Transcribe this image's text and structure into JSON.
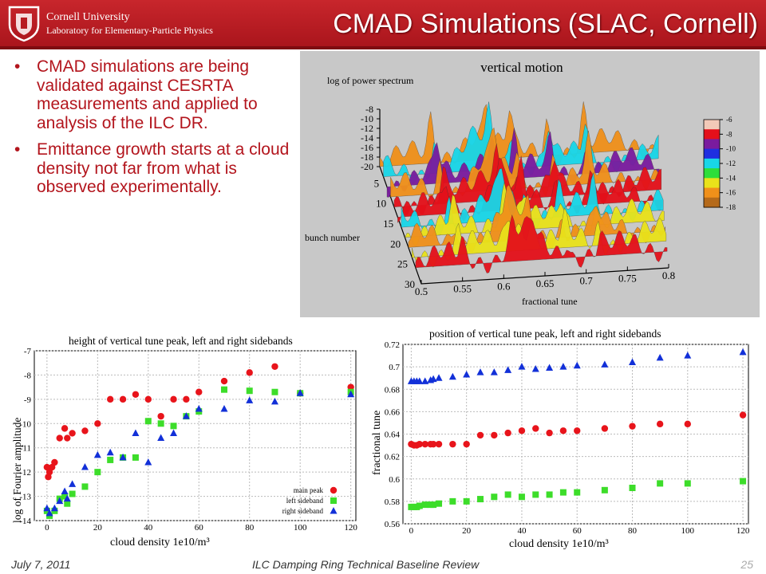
{
  "header": {
    "university": "Cornell University",
    "lab": "Laboratory for Elementary-Particle Physics",
    "title": "CMAD Simulations (SLAC, Cornell)",
    "colors": {
      "band": "#b71c22",
      "dark": "#7e0b10"
    },
    "logo_icon": "cornell-seal-icon"
  },
  "bullets": [
    {
      "marker": "•",
      "text": "CMAD simulations are being validated against CESRTA measurements and applied to analysis of the ILC DR."
    },
    {
      "marker": "•",
      "text": "Emittance growth starts at a cloud density not far from what is observed experimentally."
    }
  ],
  "footer": {
    "date": "July 7, 2011",
    "title": "ILC Damping Ring Technical Baseline Review",
    "page": "25"
  },
  "chart_data": [
    {
      "type": "surface",
      "title": "vertical motion",
      "zlabel": "log of power spectrum",
      "ylabel": "bunch number",
      "xlabel": "fractional tune",
      "z_ticks": [
        "-8",
        "-10",
        "-12",
        "-14",
        "-16",
        "-18",
        "-20"
      ],
      "y_ticks": [
        "5",
        "10",
        "15",
        "20",
        "25",
        "30"
      ],
      "x_ticks": [
        "0.5",
        "0.55",
        "0.6",
        "0.65",
        "0.7",
        "0.75",
        "0.8"
      ],
      "colorbar_ticks": [
        "-6",
        "-8",
        "-10",
        "-12",
        "-14",
        "-16",
        "-18"
      ],
      "colorbar_colors": [
        "#f2c9b8",
        "#e4101a",
        "#7a1b9e",
        "#1f2fe0",
        "#18d6e8",
        "#2ede3a",
        "#e9e21a",
        "#f0901a",
        "#b56a1a"
      ],
      "xlim": [
        0.5,
        0.8
      ],
      "ylim": [
        1,
        30
      ],
      "zlim": [
        -20,
        -6
      ],
      "grid": false
    },
    {
      "type": "scatter",
      "title": "height of vertical tune peak, left and right sidebands",
      "xlabel": "cloud density 1e10/m³",
      "ylabel": "log of Fourier amplitude",
      "xlim": [
        -5,
        122
      ],
      "ylim": [
        -14,
        -7
      ],
      "x_ticks": [
        0,
        20,
        40,
        60,
        80,
        100,
        120
      ],
      "y_ticks": [
        -14,
        -13,
        -12,
        -11,
        -10,
        -9,
        -8,
        -7
      ],
      "grid": true,
      "legend_position": "bottom-right",
      "series": [
        {
          "name": "main peak",
          "marker": "circle",
          "color": "#e8141b",
          "x": [
            0,
            0.5,
            1,
            2,
            3,
            5,
            7,
            8,
            10,
            15,
            20,
            25,
            30,
            35,
            40,
            45,
            50,
            55,
            60,
            70,
            80,
            90,
            100,
            120
          ],
          "y": [
            -11.8,
            -12.2,
            -12.0,
            -11.8,
            -11.6,
            -10.6,
            -10.2,
            -10.6,
            -10.4,
            -10.3,
            -10.0,
            -9.0,
            -9.0,
            -8.8,
            -9.0,
            -9.7,
            -9.0,
            -9.0,
            -8.7,
            -8.25,
            -7.9,
            -7.65,
            -8.75,
            -8.5
          ]
        },
        {
          "name": "left sideband",
          "marker": "square",
          "color": "#3ddd2a",
          "x": [
            0,
            1,
            3,
            5,
            7,
            8,
            10,
            15,
            20,
            25,
            30,
            35,
            40,
            45,
            50,
            55,
            60,
            70,
            80,
            90,
            100,
            120
          ],
          "y": [
            -13.6,
            -13.8,
            -13.6,
            -13.1,
            -13.0,
            -13.3,
            -12.9,
            -12.6,
            -12.0,
            -11.5,
            -11.4,
            -11.4,
            -9.9,
            -10.0,
            -10.1,
            -9.7,
            -9.5,
            -8.6,
            -8.65,
            -8.7,
            -8.75,
            -8.7
          ]
        },
        {
          "name": "right sideband",
          "marker": "triangle",
          "color": "#1230d8",
          "x": [
            0,
            1,
            3,
            5,
            7,
            8,
            10,
            15,
            20,
            25,
            30,
            35,
            40,
            45,
            50,
            55,
            60,
            70,
            80,
            90,
            100,
            120
          ],
          "y": [
            -13.5,
            -13.7,
            -13.5,
            -13.2,
            -12.8,
            -13.1,
            -12.5,
            -11.8,
            -11.3,
            -11.2,
            -11.4,
            -10.4,
            -11.6,
            -10.6,
            -10.4,
            -9.7,
            -9.4,
            -9.4,
            -9.05,
            -9.1,
            -8.75,
            -8.8
          ]
        }
      ]
    },
    {
      "type": "scatter",
      "title": "position of vertical tune peak, left and right sidebands",
      "xlabel": "cloud density 1e10/m³",
      "ylabel": "fractional tune",
      "xlim": [
        -3,
        122
      ],
      "ylim": [
        0.56,
        0.72
      ],
      "x_ticks": [
        0,
        20,
        40,
        60,
        80,
        100,
        120
      ],
      "y_ticks": [
        0.56,
        0.58,
        0.6,
        0.62,
        0.64,
        0.66,
        0.68,
        0.7,
        0.72
      ],
      "grid": true,
      "series": [
        {
          "marker": "circle",
          "color": "#e8141b",
          "x": [
            0,
            1,
            2,
            3,
            5,
            7,
            8,
            10,
            15,
            20,
            25,
            30,
            35,
            40,
            45,
            50,
            55,
            60,
            70,
            80,
            90,
            100,
            120
          ],
          "y": [
            0.631,
            0.63,
            0.63,
            0.631,
            0.631,
            0.631,
            0.631,
            0.631,
            0.631,
            0.631,
            0.639,
            0.639,
            0.641,
            0.643,
            0.645,
            0.641,
            0.643,
            0.643,
            0.645,
            0.647,
            0.649,
            0.649,
            0.657
          ]
        },
        {
          "marker": "square",
          "color": "#3ddd2a",
          "x": [
            0,
            1,
            2,
            3,
            5,
            7,
            8,
            10,
            15,
            20,
            25,
            30,
            35,
            40,
            45,
            50,
            55,
            60,
            70,
            80,
            90,
            100,
            120
          ],
          "y": [
            0.575,
            0.575,
            0.575,
            0.576,
            0.577,
            0.577,
            0.577,
            0.578,
            0.58,
            0.58,
            0.582,
            0.584,
            0.586,
            0.584,
            0.586,
            0.586,
            0.588,
            0.588,
            0.59,
            0.592,
            0.596,
            0.596,
            0.598
          ]
        },
        {
          "marker": "triangle",
          "color": "#1230d8",
          "x": [
            0,
            1,
            2,
            3,
            5,
            7,
            8,
            10,
            15,
            20,
            25,
            30,
            35,
            40,
            45,
            50,
            55,
            60,
            70,
            80,
            90,
            100,
            120
          ],
          "y": [
            0.687,
            0.687,
            0.687,
            0.687,
            0.687,
            0.688,
            0.689,
            0.69,
            0.691,
            0.693,
            0.695,
            0.695,
            0.697,
            0.7,
            0.698,
            0.699,
            0.7,
            0.701,
            0.702,
            0.704,
            0.708,
            0.71,
            0.713
          ]
        }
      ]
    }
  ]
}
